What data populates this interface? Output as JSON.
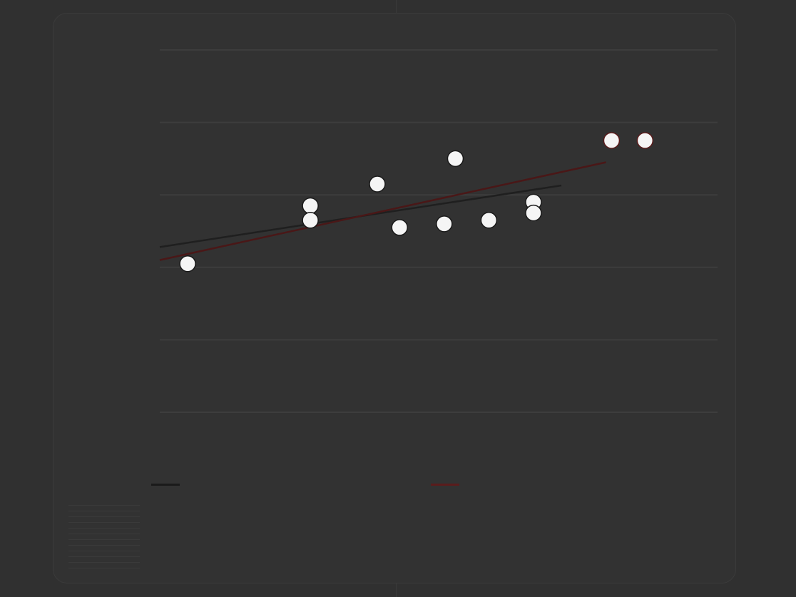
{
  "chart_data": {
    "type": "scatter",
    "title": "",
    "xlabel": "",
    "ylabel": "",
    "xlim": [
      0,
      5
    ],
    "ylim": [
      0,
      5
    ],
    "x_ticks": [
      "",
      "",
      "",
      "",
      "",
      ""
    ],
    "y_ticks": [
      "",
      "",
      "",
      "",
      "",
      ""
    ],
    "grid": true,
    "legend_position": "bottom",
    "series": [
      {
        "name": "",
        "color": "#1a1a1a",
        "values": [
          {
            "x": 0.25,
            "y": 2.05
          },
          {
            "x": 1.35,
            "y": 2.85
          },
          {
            "x": 1.35,
            "y": 2.65
          },
          {
            "x": 1.95,
            "y": 3.15
          },
          {
            "x": 2.15,
            "y": 2.55
          },
          {
            "x": 2.55,
            "y": 2.6
          },
          {
            "x": 2.65,
            "y": 3.5
          },
          {
            "x": 2.95,
            "y": 2.65
          },
          {
            "x": 3.35,
            "y": 2.9
          },
          {
            "x": 3.35,
            "y": 2.75
          }
        ]
      },
      {
        "name": "",
        "color": "#5a1c1c",
        "values": [
          {
            "x": 4.05,
            "y": 3.75
          },
          {
            "x": 4.35,
            "y": 3.75
          }
        ]
      }
    ],
    "trendlines": [
      {
        "color": "#1f1f1f",
        "x": [
          0,
          3.6
        ],
        "y": [
          2.28,
          3.13
        ]
      },
      {
        "color": "#4a1717",
        "x": [
          0,
          4.0
        ],
        "y": [
          2.1,
          3.45
        ]
      }
    ]
  },
  "legend": {
    "items": [
      {
        "label": "",
        "color": "#1a1a1a"
      },
      {
        "label": "",
        "color": "#5a1c1c"
      }
    ]
  },
  "footer": {
    "label": "",
    "caption": ""
  }
}
